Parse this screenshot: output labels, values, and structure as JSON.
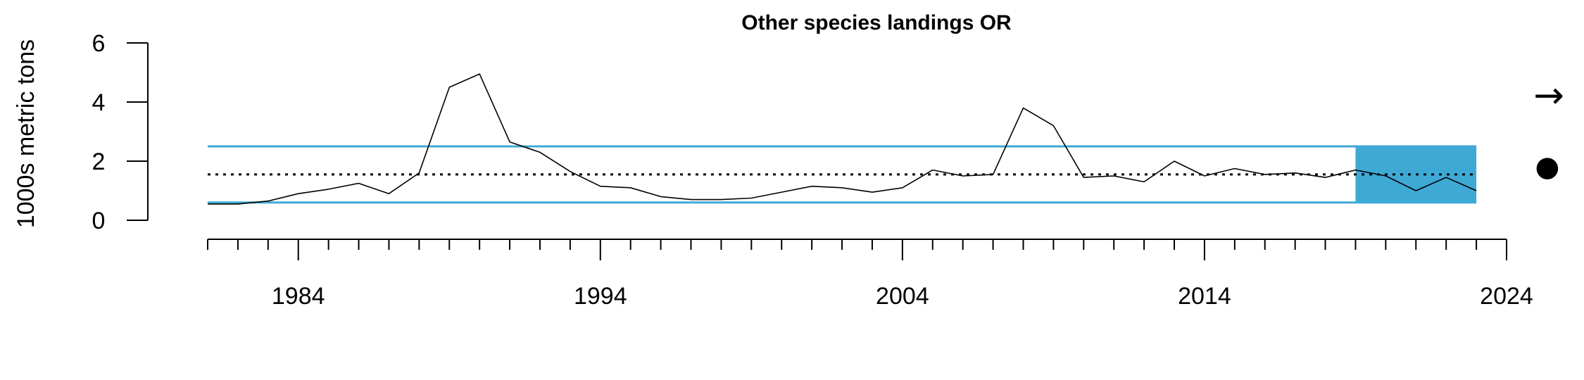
{
  "chart_data": {
    "type": "line",
    "title": "Other species landings OR",
    "xlabel": "",
    "ylabel": "1000s metric tons",
    "xlim": [
      1981,
      2024
    ],
    "ylim": [
      0,
      6
    ],
    "x_ticks": [
      1984,
      1994,
      2004,
      2014,
      2024
    ],
    "y_ticks": [
      0,
      2,
      4,
      6
    ],
    "grid": false,
    "series": [
      {
        "x": [
          1981,
          1982,
          1983,
          1984,
          1985,
          1986,
          1987,
          1988,
          1989,
          1990,
          1991,
          1992,
          1993,
          1994,
          1995,
          1996,
          1997,
          1998,
          1999,
          2000,
          2001,
          2002,
          2003,
          2004,
          2005,
          2006,
          2007,
          2008,
          2009,
          2010,
          2011,
          2012,
          2013,
          2014,
          2015,
          2016,
          2017,
          2018,
          2019,
          2020,
          2021,
          2022,
          2023
        ],
        "values": [
          0.55,
          0.55,
          0.65,
          0.9,
          1.05,
          1.25,
          0.9,
          1.6,
          4.5,
          4.95,
          2.65,
          2.3,
          1.65,
          1.15,
          1.1,
          0.8,
          0.7,
          0.7,
          0.75,
          0.95,
          1.15,
          1.1,
          0.95,
          1.1,
          1.7,
          1.5,
          1.55,
          3.8,
          3.2,
          1.45,
          1.5,
          1.3,
          2.0,
          1.5,
          1.75,
          1.55,
          1.6,
          1.45,
          1.7,
          1.5,
          1.0,
          1.45,
          1.0
        ],
        "color": "#000000"
      }
    ],
    "mean": 1.55,
    "sd_band": [
      0.6,
      2.5
    ],
    "band_color": "#3fa9d6",
    "highlight_range": [
      2019,
      2023
    ],
    "trend_symbol": "→",
    "mean_symbol": "●"
  }
}
